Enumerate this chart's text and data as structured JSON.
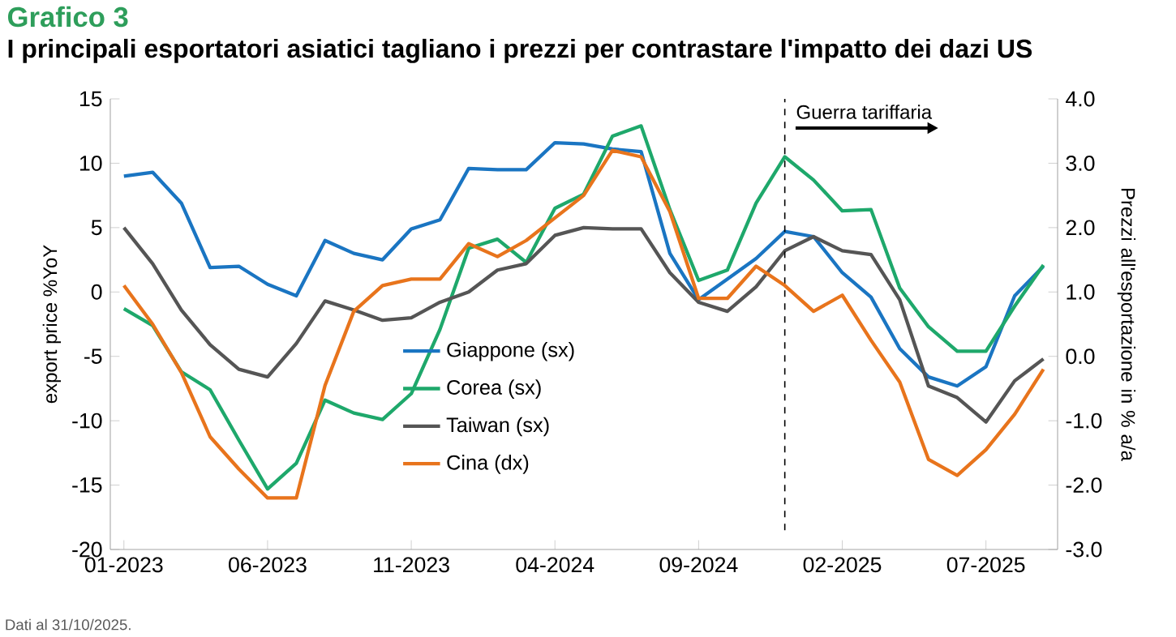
{
  "chart_data": {
    "type": "line",
    "title": "Grafico 3",
    "subtitle": "I principali esportatori asiatici tagliano i prezzi per contrastare l'impatto dei dazi US",
    "ylabel": "export price %YoY",
    "y2label": "Prezzi all'esportazione in % a/a",
    "annotations": [
      "Guerra tariffaria",
      "Dati al 31/10/2025."
    ],
    "x": [
      "2023-01",
      "2023-02",
      "2023-03",
      "2023-04",
      "2023-05",
      "2023-06",
      "2023-07",
      "2023-08",
      "2023-09",
      "2023-10",
      "2023-11",
      "2023-12",
      "2024-01",
      "2024-02",
      "2024-03",
      "2024-04",
      "2024-05",
      "2024-06",
      "2024-07",
      "2024-08",
      "2024-09",
      "2024-10",
      "2024-11",
      "2024-12",
      "2025-01",
      "2025-02",
      "2025-03",
      "2025-04",
      "2025-05",
      "2025-06",
      "2025-07",
      "2025-08",
      "2025-09"
    ],
    "series": [
      {
        "name": "Giappone (sx)",
        "color": "#1a75c2",
        "values": [
          9.0,
          9.3,
          6.9,
          1.9,
          2.0,
          0.6,
          -0.3,
          4.0,
          3.0,
          2.5,
          4.9,
          5.6,
          9.6,
          9.5,
          9.5,
          11.6,
          11.5,
          11.1,
          10.9,
          3.0,
          -0.6,
          1.0,
          2.6,
          4.7,
          4.3,
          1.5,
          -0.4,
          -4.4,
          -6.6,
          -7.3,
          -5.8,
          -0.3,
          2.0
        ]
      },
      {
        "name": "Corea (sx)",
        "color": "#1ea86b",
        "values": [
          -1.3,
          -2.6,
          -6.2,
          -7.6,
          -11.5,
          -15.3,
          -13.3,
          -8.4,
          -9.4,
          -9.9,
          -7.9,
          -2.9,
          3.4,
          4.1,
          2.3,
          6.5,
          7.6,
          12.1,
          12.9,
          6.4,
          0.9,
          1.7,
          6.9,
          10.5,
          8.7,
          6.3,
          6.4,
          0.3,
          -2.7,
          -4.6,
          -4.6,
          -1.1,
          2.1
        ]
      },
      {
        "name": "Taiwan (sx)",
        "color": "#555555",
        "values": [
          5.0,
          2.2,
          -1.4,
          -4.1,
          -6.0,
          -6.6,
          -4.0,
          -0.7,
          -1.4,
          -2.2,
          -2.0,
          -0.8,
          0.0,
          1.7,
          2.2,
          4.4,
          5.0,
          4.9,
          4.9,
          1.5,
          -0.8,
          -1.5,
          0.4,
          3.2,
          4.3,
          3.2,
          2.9,
          -0.6,
          -7.3,
          -8.2,
          -10.1,
          -6.9,
          -5.2
        ]
      },
      {
        "name": "Cina (dx)",
        "color": "#e8741c",
        "axis": "y2",
        "values": [
          1.1,
          0.5,
          -0.25,
          -1.25,
          -1.75,
          -2.2,
          -2.2,
          -0.45,
          0.7,
          1.1,
          1.2,
          1.2,
          1.75,
          1.55,
          1.8,
          2.15,
          2.5,
          3.2,
          3.1,
          2.25,
          0.9,
          0.9,
          1.4,
          1.1,
          0.7,
          0.95,
          0.25,
          -0.4,
          -1.6,
          -1.85,
          -1.45,
          -0.9,
          -0.2
        ]
      }
    ],
    "xlim": [
      "2022-12-17",
      "2025-09-16"
    ],
    "xticks": [
      {
        "value": "2023-01",
        "label": "01-2023"
      },
      {
        "value": "2023-06",
        "label": "06-2023"
      },
      {
        "value": "2023-11",
        "label": "11-2023"
      },
      {
        "value": "2024-04",
        "label": "04-2024"
      },
      {
        "value": "2024-09",
        "label": "09-2024"
      },
      {
        "value": "2025-02",
        "label": "02-2025"
      },
      {
        "value": "2025-07",
        "label": "07-2025"
      }
    ],
    "ylim": [
      -20,
      15
    ],
    "yticks": [
      -20,
      -15,
      -10,
      -5,
      0,
      5,
      10,
      15
    ],
    "y2lim": [
      -3,
      4
    ],
    "y2ticks": [
      {
        "value": -3,
        "label": "-3.0"
      },
      {
        "value": -2,
        "label": "-2.0"
      },
      {
        "value": -1,
        "label": "-1.0"
      },
      {
        "value": 0,
        "label": "0.0"
      },
      {
        "value": 1,
        "label": "1.0"
      },
      {
        "value": 2,
        "label": "2.0"
      },
      {
        "value": 3,
        "label": "3.0"
      },
      {
        "value": 4,
        "label": "4.0"
      }
    ],
    "ref_lines": [
      {
        "axis": "x",
        "value": "2024-12",
        "line_style": "dashed",
        "color": "#000000"
      }
    ],
    "legend": "center"
  }
}
